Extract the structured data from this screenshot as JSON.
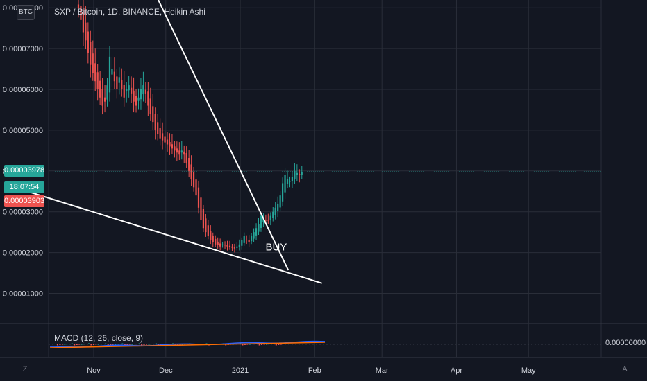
{
  "header": {
    "currency_badge": "BTC",
    "symbol_title": "SXP / Bitcoin, 1D, BINANCE, Heikin Ashi"
  },
  "price_tags": {
    "last_price": "0.00003978",
    "countdown": "18:07:54",
    "prev_price": "0.00003903"
  },
  "macd": {
    "label": "MACD (12, 26, close, 9)",
    "value": "0.00000000"
  },
  "colors": {
    "background": "#131722",
    "up_candle": "#26a69a",
    "down_candle": "#ef5350",
    "grid": "#2a2e39",
    "text": "#d1d4dc",
    "trendline": "#ffffff",
    "macd_line": "#2962ff",
    "signal_line": "#ff6d00"
  },
  "icons": {
    "zoom_left": "Z",
    "zoom_right": "A"
  },
  "chart_data": {
    "type": "candlestick",
    "y_axis_ticks": [
      "0.00008000",
      "0.00007000",
      "0.00006000",
      "0.00005000",
      "0.00004000",
      "0.00003000",
      "0.00002000",
      "0.00001000"
    ],
    "y_axis_values": [
      8e-05,
      7e-05,
      6e-05,
      5e-05,
      4e-05,
      3e-05,
      2e-05,
      1e-05
    ],
    "x_axis_ticks": [
      "Nov",
      "Dec",
      "2021",
      "Feb",
      "Mar",
      "Apr",
      "May"
    ],
    "x_axis_dates": [
      "2020-11-01",
      "2020-12-01",
      "2021-01-01",
      "2021-02-01",
      "2021-03-01",
      "2021-04-01",
      "2021-05-01"
    ],
    "ylim": [
      5.8e-06,
      8.13e-05
    ],
    "last_price": 3.978e-05,
    "annotations": [
      {
        "text": "BUY",
        "date": "2021-01-16",
        "price": 2.05e-05
      }
    ],
    "trendlines": [
      {
        "from": [
          "2020-11-27",
          8.3e-05
        ],
        "to": [
          "2021-01-21",
          1.57e-05
        ]
      },
      {
        "from": [
          "2020-10-06",
          3.47e-05
        ],
        "to": [
          "2021-02-04",
          1.25e-05
        ]
      }
    ],
    "candles_close": [
      8e-05,
      7.7e-05,
      7.4e-05,
      7.2e-05,
      6.9e-05,
      6.6e-05,
      6.4e-05,
      6.2e-05,
      6e-05,
      5.8e-05,
      5.6e-05,
      5.7e-05,
      6.1e-05,
      6.8e-05,
      6.5e-05,
      6.2e-05,
      6e-05,
      6.3e-05,
      6e-05,
      5.8e-05,
      6e-05,
      6.1e-05,
      5.9e-05,
      5.7e-05,
      5.6e-05,
      5.8e-05,
      6e-05,
      6.1e-05,
      5.9e-05,
      5.6e-05,
      5.4e-05,
      5.2e-05,
      5e-05,
      4.9e-05,
      4.8e-05,
      4.75e-05,
      4.7e-05,
      4.65e-05,
      4.6e-05,
      4.55e-05,
      4.5e-05,
      4.45e-05,
      4.4e-05,
      4.5e-05,
      4.4e-05,
      4.2e-05,
      4e-05,
      3.8e-05,
      3.6e-05,
      3.4e-05,
      3.1e-05,
      2.8e-05,
      2.6e-05,
      2.5e-05,
      2.4e-05,
      2.3e-05,
      2.25e-05,
      2.2e-05,
      2.18e-05,
      2.15e-05,
      2.2e-05,
      2.18e-05,
      2.15e-05,
      2.13e-05,
      2.12e-05,
      2.1e-05,
      2.15e-05,
      2.2e-05,
      2.3e-05,
      2.4e-05,
      2.3e-05,
      2.25e-05,
      2.4e-05,
      2.5e-05,
      2.6e-05,
      2.7e-05,
      2.9e-05,
      2.85e-05,
      2.8e-05,
      2.8e-05,
      2.9e-05,
      3e-05,
      3.1e-05,
      3.2e-05,
      3.4e-05,
      3.7e-05,
      3.9e-05,
      3.8e-05,
      3.75e-05,
      3.85e-05,
      4e-05,
      3.95e-05,
      3.9e-05,
      3.98e-05
    ]
  }
}
